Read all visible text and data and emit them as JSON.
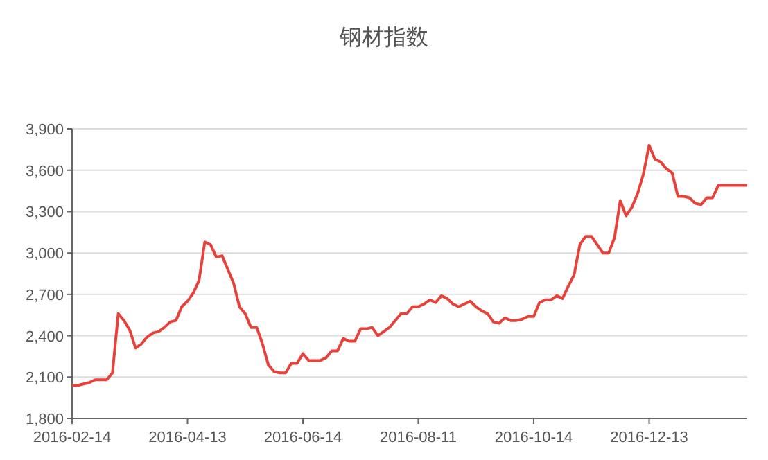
{
  "chart_data": {
    "type": "line",
    "title": "钢材指数",
    "categories": [
      "2016-02-14",
      null,
      null,
      null,
      null,
      null,
      null,
      null,
      null,
      null,
      null,
      null,
      null,
      null,
      null,
      null,
      null,
      null,
      null,
      null,
      "2016-04-13",
      null,
      null,
      null,
      null,
      null,
      null,
      null,
      null,
      null,
      null,
      null,
      null,
      null,
      null,
      null,
      null,
      null,
      null,
      null,
      "2016-06-14",
      null,
      null,
      null,
      null,
      null,
      null,
      null,
      null,
      null,
      null,
      null,
      null,
      null,
      null,
      null,
      null,
      null,
      null,
      null,
      "2016-08-11",
      null,
      null,
      null,
      null,
      null,
      null,
      null,
      null,
      null,
      null,
      null,
      null,
      null,
      null,
      null,
      null,
      null,
      null,
      null,
      "2016-10-14",
      null,
      null,
      null,
      null,
      null,
      null,
      null,
      null,
      null,
      null,
      null,
      null,
      null,
      null,
      null,
      null,
      null,
      null,
      null,
      "2016-12-13",
      null,
      null,
      null,
      null,
      null,
      null,
      null,
      null,
      null,
      null,
      null,
      null,
      null,
      null,
      null,
      null,
      null
    ],
    "series": [
      {
        "color": "#e8413a",
        "values": [
          2040,
          2040,
          2050,
          2060,
          2080,
          2080,
          2080,
          2130,
          2560,
          2510,
          2440,
          2310,
          2340,
          2390,
          2420,
          2430,
          2460,
          2500,
          2510,
          2610,
          2650,
          2710,
          2800,
          3080,
          3060,
          2970,
          2980,
          2880,
          2780,
          2610,
          2560,
          2460,
          2460,
          2340,
          2190,
          2140,
          2130,
          2130,
          2200,
          2200,
          2270,
          2220,
          2220,
          2220,
          2240,
          2290,
          2290,
          2380,
          2360,
          2360,
          2450,
          2450,
          2460,
          2400,
          2430,
          2460,
          2510,
          2560,
          2560,
          2610,
          2610,
          2630,
          2660,
          2640,
          2690,
          2670,
          2630,
          2610,
          2630,
          2650,
          2610,
          2580,
          2560,
          2500,
          2490,
          2530,
          2510,
          2510,
          2520,
          2540,
          2540,
          2640,
          2660,
          2660,
          2690,
          2670,
          2760,
          2840,
          3060,
          3120,
          3120,
          3060,
          3000,
          3000,
          3110,
          3380,
          3270,
          3330,
          3430,
          3570,
          3780,
          3680,
          3660,
          3610,
          3580,
          3410,
          3410,
          3400,
          3360,
          3350,
          3400,
          3400,
          3490,
          3490,
          3490,
          3490,
          3490,
          3490
        ]
      }
    ],
    "ylim": [
      1800,
      3900
    ],
    "yticks": [
      {
        "value": 1800,
        "label": "1,800"
      },
      {
        "value": 2100,
        "label": "2,100"
      },
      {
        "value": 2400,
        "label": "2,400"
      },
      {
        "value": 2700,
        "label": "2,700"
      },
      {
        "value": 3000,
        "label": "3,000"
      },
      {
        "value": 3300,
        "label": "3,300"
      },
      {
        "value": 3600,
        "label": "3,600"
      },
      {
        "value": 3900,
        "label": "3,900"
      }
    ],
    "grid": "y",
    "line_style": "solid"
  }
}
